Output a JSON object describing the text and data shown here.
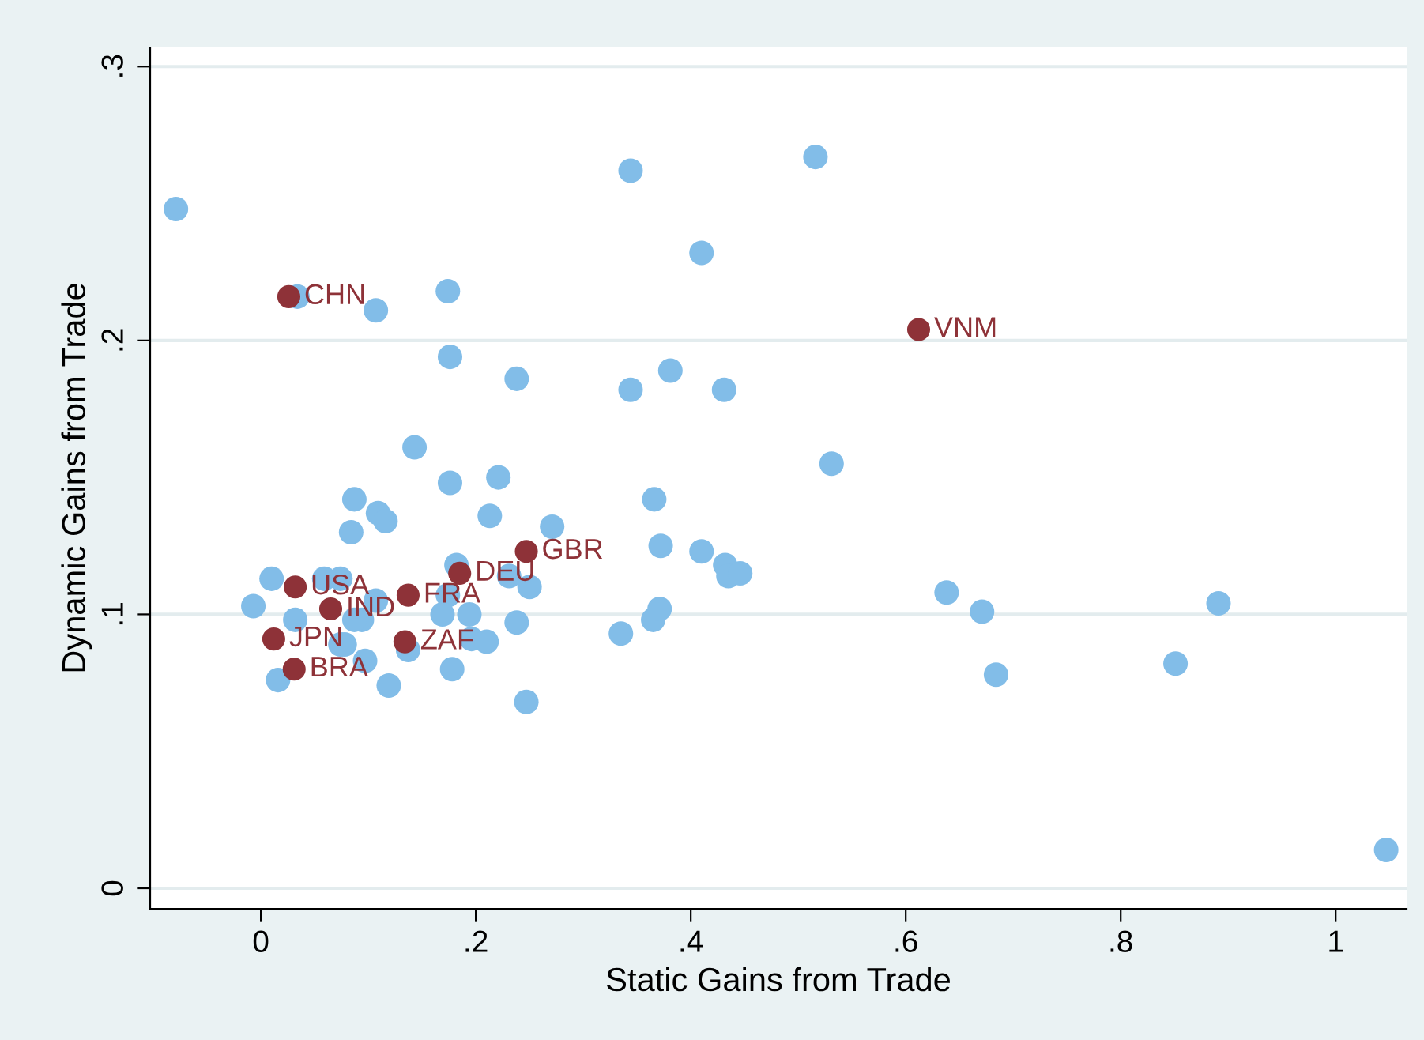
{
  "chart_data": {
    "type": "scatter",
    "xlabel": "Static Gains from Trade",
    "ylabel": "Dynamic Gains from Trade",
    "xlim": [
      -0.103,
      1.066
    ],
    "ylim": [
      -0.0075,
      0.307
    ],
    "xticks": [
      0,
      {
        "value": 0.2,
        "label": ".2"
      },
      {
        "value": 0.4,
        "label": ".4"
      },
      {
        "value": 0.6,
        "label": ".6"
      },
      {
        "value": 0.8,
        "label": ".8"
      },
      1
    ],
    "yticks": [
      0,
      {
        "value": 0.1,
        "label": ".1"
      },
      {
        "value": 0.2,
        "label": ".2"
      },
      {
        "value": 0.3,
        "label": ".3"
      }
    ],
    "grid": "y",
    "marker": "circle",
    "series": [
      {
        "color": "#82bde8",
        "x": [
          -0.079,
          0.034,
          0.107,
          0.174,
          0.176,
          0.238,
          0.344,
          0.41,
          0.516,
          0.344,
          0.381,
          0.431,
          0.531,
          0.143,
          0.176,
          0.221,
          0.087,
          0.109,
          0.116,
          0.084,
          0.213,
          0.271,
          0.366,
          0.372,
          0.41,
          0.432,
          0.435,
          0.446,
          0.25,
          0.182,
          0.231,
          0.01,
          0.059,
          0.074,
          -0.007,
          0.032,
          0.107,
          0.094,
          0.087,
          0.174,
          0.169,
          0.194,
          0.196,
          0.21,
          0.238,
          0.137,
          0.074,
          0.078,
          0.097,
          0.016,
          0.119,
          0.178,
          0.247,
          0.335,
          0.365,
          0.371,
          0.638,
          0.671,
          0.684,
          0.851,
          0.891,
          1.047
        ],
        "values": [
          0.248,
          0.216,
          0.211,
          0.218,
          0.194,
          0.186,
          0.262,
          0.232,
          0.267,
          0.182,
          0.189,
          0.182,
          0.155,
          0.161,
          0.148,
          0.15,
          0.142,
          0.137,
          0.134,
          0.13,
          0.136,
          0.132,
          0.142,
          0.125,
          0.123,
          0.118,
          0.114,
          0.115,
          0.11,
          0.118,
          0.114,
          0.113,
          0.113,
          0.113,
          0.103,
          0.098,
          0.105,
          0.098,
          0.098,
          0.107,
          0.1,
          0.1,
          0.091,
          0.09,
          0.097,
          0.087,
          0.089,
          0.089,
          0.083,
          0.076,
          0.074,
          0.08,
          0.068,
          0.093,
          0.098,
          0.102,
          0.108,
          0.101,
          0.078,
          0.082,
          0.104,
          0.014
        ]
      },
      {
        "color": "#8e3238",
        "x": [
          0.026,
          0.612,
          0.247,
          0.185,
          0.032,
          0.065,
          0.137,
          0.134,
          0.012,
          0.031
        ],
        "values": [
          0.216,
          0.204,
          0.123,
          0.115,
          0.11,
          0.102,
          0.107,
          0.09,
          0.091,
          0.08
        ]
      }
    ],
    "annotations": [
      {
        "text": "CHN",
        "x": 0.026,
        "y": 0.216
      },
      {
        "text": "VNM",
        "x": 0.612,
        "y": 0.204
      },
      {
        "text": "GBR",
        "x": 0.247,
        "y": 0.123
      },
      {
        "text": "DEU",
        "x": 0.185,
        "y": 0.115
      },
      {
        "text": "USA",
        "x": 0.032,
        "y": 0.11
      },
      {
        "text": "IND",
        "x": 0.065,
        "y": 0.102
      },
      {
        "text": "FRA",
        "x": 0.137,
        "y": 0.107
      },
      {
        "text": "ZAF",
        "x": 0.134,
        "y": 0.09
      },
      {
        "text": "JPN",
        "x": 0.012,
        "y": 0.091
      },
      {
        "text": "BRA",
        "x": 0.031,
        "y": 0.08
      }
    ]
  }
}
